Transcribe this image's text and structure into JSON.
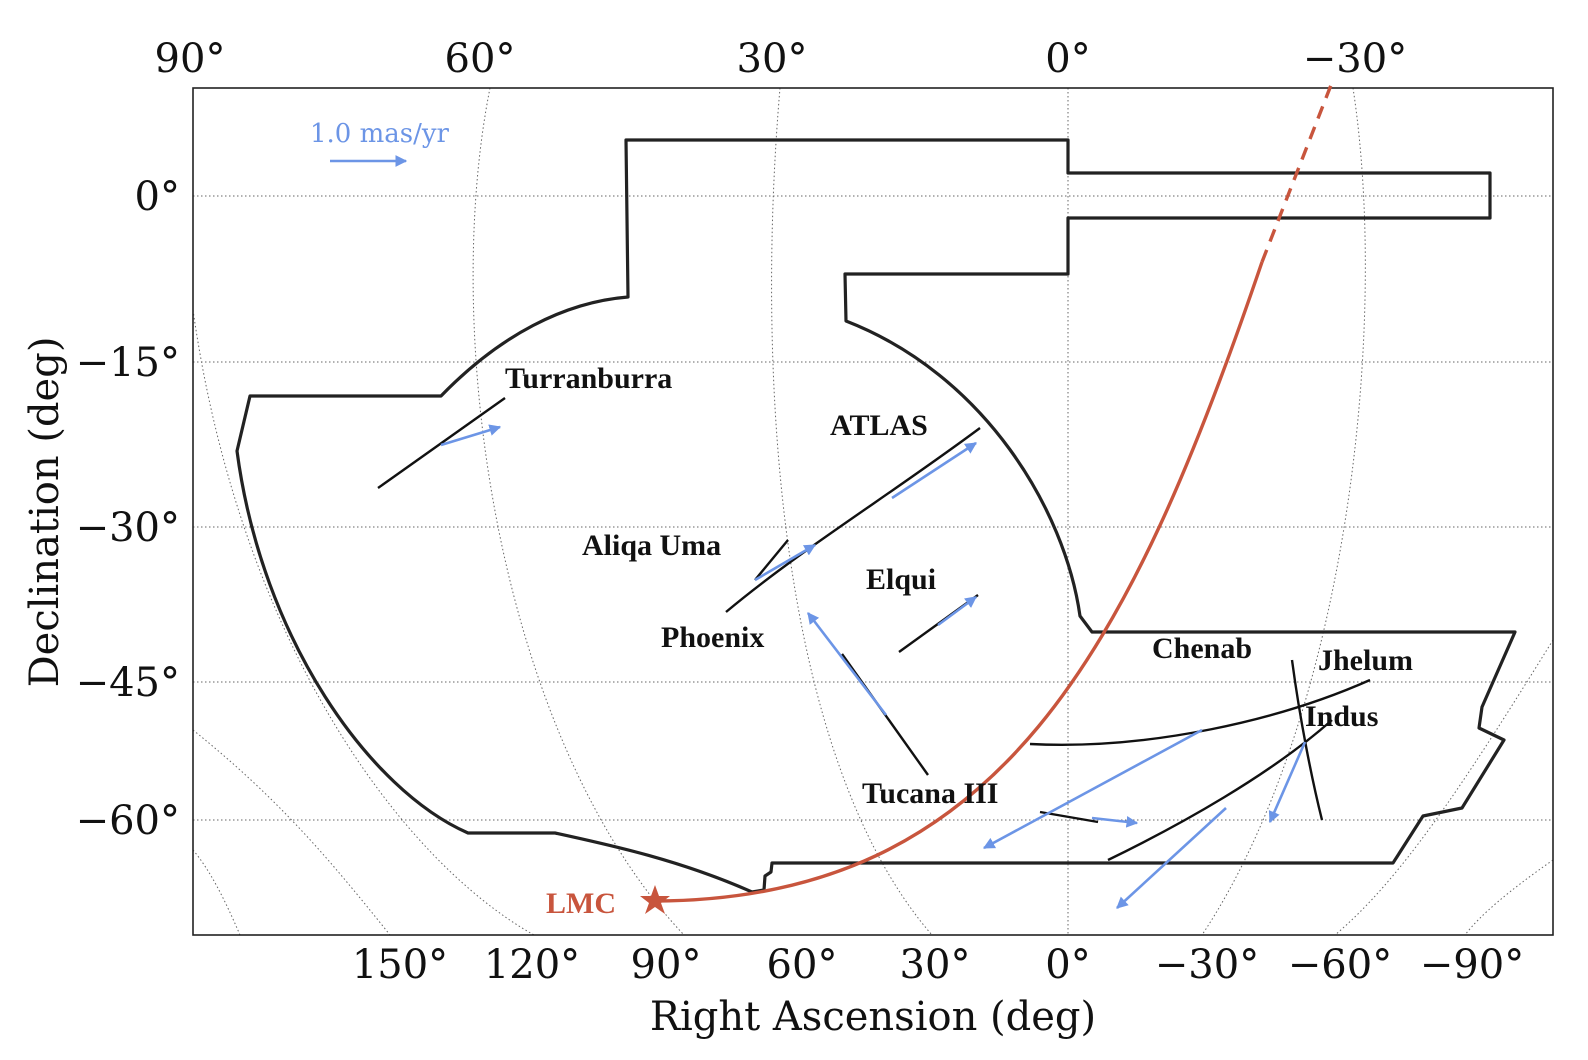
{
  "colors": {
    "proper_motion": "#6c95e6",
    "lmc": "#c8553d",
    "footprint": "#222222",
    "tracks": "#111111"
  },
  "chart_data": {
    "type": "scatter",
    "xlabel": "Right Ascension (deg)",
    "ylabel": "Declination (deg)",
    "projection": "McBryde-Thomas flat-polar quartic (sky map)",
    "grid": true,
    "top_ticks": [
      "90°",
      "60°",
      "30°",
      "0°",
      "−30°"
    ],
    "bottom_ticks": [
      "150°",
      "120°",
      "90°",
      "60°",
      "30°",
      "0°",
      "−30°",
      "−60°",
      "−90°"
    ],
    "left_ticks": [
      "0°",
      "−15°",
      "−30°",
      "−45°",
      "−60°"
    ],
    "scale_arrow": {
      "label": "1.0 mas/yr"
    },
    "lmc_label": "LMC",
    "streams": [
      {
        "name": "Turranburra"
      },
      {
        "name": "ATLAS"
      },
      {
        "name": "Aliqa Uma"
      },
      {
        "name": "Elqui"
      },
      {
        "name": "Phoenix"
      },
      {
        "name": "Chenab"
      },
      {
        "name": "Jhelum"
      },
      {
        "name": "Indus"
      },
      {
        "name": "Tucana III"
      }
    ]
  }
}
